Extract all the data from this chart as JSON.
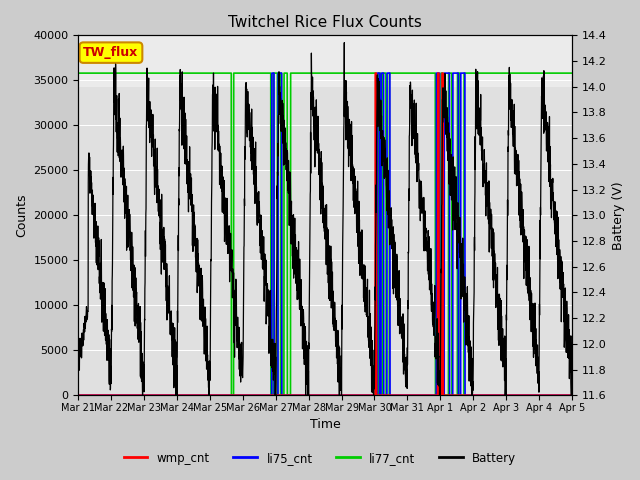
{
  "title": "Twitchel Rice Flux Counts",
  "xlabel": "Time",
  "ylabel_left": "Counts",
  "ylabel_right": "Battery (V)",
  "ylim_left": [
    0,
    40000
  ],
  "ylim_right": [
    11.6,
    14.4
  ],
  "yticks_left": [
    0,
    5000,
    10000,
    15000,
    20000,
    25000,
    30000,
    35000,
    40000
  ],
  "yticks_right": [
    11.6,
    11.8,
    12.0,
    12.2,
    12.4,
    12.6,
    12.8,
    13.0,
    13.2,
    13.4,
    13.6,
    13.8,
    14.0,
    14.2,
    14.4
  ],
  "xtick_labels": [
    "Mar 21",
    "Mar 22",
    "Mar 23",
    "Mar 24",
    "Mar 25",
    "Mar 26",
    "Mar 27",
    "Mar 28",
    "Mar 29",
    "Mar 30",
    "Mar 31",
    "Apr 1",
    "Apr 2",
    "Apr 3",
    "Apr 4",
    "Apr 5"
  ],
  "annotation_box": "TW_flux",
  "annotation_box_color": "#ffff00",
  "annotation_box_edge": "#cc8800",
  "annotation_text_color": "#cc0000",
  "fig_facecolor": "#cccccc",
  "plot_facecolor": "#e0e0e0",
  "upper_band_color": "#ebebeb",
  "grid_color": "#ffffff",
  "colors": {
    "wmp_cnt": "#ff0000",
    "li75_cnt": "#0000ff",
    "li77_cnt": "#00cc00",
    "Battery": "#000000"
  },
  "legend_labels": [
    "wmp_cnt",
    "li75_cnt",
    "li77_cnt",
    "Battery"
  ],
  "li77_level": 35800,
  "n_points": 3000
}
